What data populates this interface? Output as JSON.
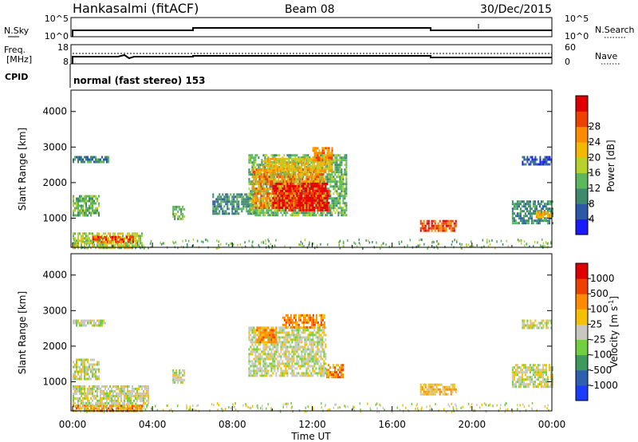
{
  "chart_data": {
    "type": "heatmap",
    "header": {
      "station": "Hankasalmi (fitACF)",
      "beam": "Beam 08",
      "date": "30/Dec/2015"
    },
    "noise_panel": {
      "left_label": "N.Sky",
      "left_ticks": [
        "10^5",
        "10^0"
      ],
      "right_label": "N.Search",
      "right_ticks": [
        "10^5",
        "10^0"
      ]
    },
    "freq_panel": {
      "left_label_1": "Freq.",
      "left_label_2": "[MHz]",
      "left_ticks": [
        "18",
        "8"
      ],
      "right_label": "Nave",
      "right_ticks": [
        "60",
        "0"
      ],
      "cpid_label": "CPID",
      "cpid_text": "normal (fast stereo) 153"
    },
    "x_axis": {
      "label": "Time UT",
      "ticks": [
        "00:00",
        "04:00",
        "08:00",
        "12:00",
        "16:00",
        "20:00",
        "00:00"
      ],
      "range_hours": [
        0,
        24
      ]
    },
    "y_axis": {
      "label": "Slant Range [km]",
      "ticks": [
        "1000",
        "2000",
        "3000",
        "4000"
      ],
      "range_km": [
        180,
        4600
      ]
    },
    "power_colorbar": {
      "label": "Power [dB]",
      "ticks": [
        "4",
        "8",
        "12",
        "16",
        "20",
        "24",
        "28"
      ],
      "colors": [
        "#1a1aff",
        "#2d58a8",
        "#3f8a6e",
        "#5cb85c",
        "#b8d22d",
        "#f5b800",
        "#ff8c00",
        "#f04000",
        "#e00000"
      ]
    },
    "velocity_colorbar": {
      "label": "Velocity [m s",
      "label_sup": "-1",
      "label_end": "]",
      "ticks": [
        "1000",
        "500",
        "100",
        "25",
        "-25",
        "-100",
        "-500",
        "-1000"
      ],
      "colors": [
        "#1a3cff",
        "#2e60b0",
        "#3d9a5a",
        "#70d040",
        "#c8c8c0",
        "#f5c000",
        "#ff8c00",
        "#f04000",
        "#e00000"
      ]
    },
    "power_regions": [
      {
        "t0": 0.0,
        "t1": 1.3,
        "r0": 1100,
        "r1": 1650,
        "level": 3
      },
      {
        "t0": 0.0,
        "t1": 3.5,
        "r0": 180,
        "r1": 600,
        "level": 4
      },
      {
        "t0": 1.0,
        "t1": 3.0,
        "r0": 300,
        "r1": 500,
        "level": 7
      },
      {
        "t0": 0.0,
        "t1": 1.8,
        "r0": 2550,
        "r1": 2750,
        "level": 2
      },
      {
        "t0": 5.0,
        "t1": 5.6,
        "r0": 950,
        "r1": 1350,
        "level": 3
      },
      {
        "t0": 7.0,
        "t1": 9.2,
        "r0": 1100,
        "r1": 1700,
        "level": 2
      },
      {
        "t0": 8.8,
        "t1": 13.7,
        "r0": 1100,
        "r1": 2800,
        "level": 3
      },
      {
        "t0": 9.0,
        "t1": 12.6,
        "r0": 1300,
        "r1": 2400,
        "level": 6
      },
      {
        "t0": 10.0,
        "t1": 12.8,
        "r0": 1250,
        "r1": 2000,
        "level": 8
      },
      {
        "t0": 9.5,
        "t1": 13.0,
        "r0": 2300,
        "r1": 2700,
        "level": 5
      },
      {
        "t0": 12.0,
        "t1": 13.0,
        "r0": 2600,
        "r1": 3000,
        "level": 6
      },
      {
        "t0": 17.4,
        "t1": 19.2,
        "r0": 650,
        "r1": 950,
        "level": 7
      },
      {
        "t0": 22.0,
        "t1": 24.0,
        "r0": 850,
        "r1": 1500,
        "level": 2
      },
      {
        "t0": 23.2,
        "t1": 24.0,
        "r0": 1050,
        "r1": 1200,
        "level": 5
      },
      {
        "t0": 22.5,
        "t1": 24.0,
        "r0": 2500,
        "r1": 2750,
        "level": 1
      }
    ],
    "velocity_regions": [
      {
        "t0": 0.0,
        "t1": 3.8,
        "r0": 300,
        "r1": 900,
        "level": 4
      },
      {
        "t0": 0.0,
        "t1": 3.5,
        "r0": 180,
        "r1": 350,
        "level": 6
      },
      {
        "t0": 0.0,
        "t1": 1.3,
        "r0": 1100,
        "r1": 1650,
        "level": 4
      },
      {
        "t0": 0.0,
        "t1": 1.6,
        "r0": 2550,
        "r1": 2750,
        "level": 4
      },
      {
        "t0": 5.0,
        "t1": 5.6,
        "r0": 950,
        "r1": 1350,
        "level": 4
      },
      {
        "t0": 8.8,
        "t1": 12.7,
        "r0": 1200,
        "r1": 2550,
        "level": 4
      },
      {
        "t0": 9.2,
        "t1": 10.2,
        "r0": 2100,
        "r1": 2550,
        "level": 6
      },
      {
        "t0": 10.5,
        "t1": 12.6,
        "r0": 2500,
        "r1": 2900,
        "level": 6
      },
      {
        "t0": 12.7,
        "t1": 13.5,
        "r0": 1100,
        "r1": 1500,
        "level": 6
      },
      {
        "t0": 17.4,
        "t1": 19.2,
        "r0": 650,
        "r1": 950,
        "level": 5
      },
      {
        "t0": 22.0,
        "t1": 24.0,
        "r0": 850,
        "r1": 1500,
        "level": 4
      },
      {
        "t0": 22.5,
        "t1": 24.0,
        "r0": 2500,
        "r1": 2750,
        "level": 4
      }
    ]
  }
}
